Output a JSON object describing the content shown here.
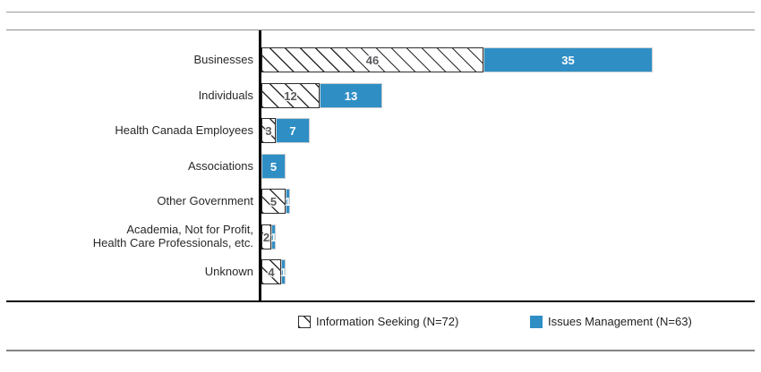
{
  "chart_data": {
    "type": "bar",
    "orientation": "horizontal",
    "stacked": true,
    "title": "",
    "xlabel": "",
    "ylabel": "",
    "grid": false,
    "legend_position": "bottom",
    "categories": [
      "Businesses",
      "Individuals",
      "Health Canada Employees",
      "Associations",
      "Other Government",
      "Academia, Not for Profit,\nHealth Care Professionals, etc.",
      "Unknown"
    ],
    "series": [
      {
        "name": "Information Seeking (N=72)",
        "style": "hatched",
        "fill_color": "#ffffff",
        "hatch_color": "#2b2b2b",
        "value_text_color": "#58595b",
        "values": [
          46,
          12,
          3,
          0,
          5,
          2,
          4
        ]
      },
      {
        "name": "Issues Management (N=63)",
        "style": "solid",
        "color": "#2f8fc5",
        "value_text_color": "#ffffff",
        "values": [
          35,
          13,
          7,
          5,
          1,
          1,
          1
        ]
      }
    ],
    "totals_note": {
      "information_seeking_total": 72,
      "issues_management_total": 63
    },
    "xlim": [
      0,
      102
    ]
  },
  "legend": {
    "items": [
      {
        "label": "Information Seeking (N=72)",
        "swatch": "hatched-square-icon"
      },
      {
        "label": "Issues Management (N=63)",
        "swatch": "blue-square-icon"
      }
    ]
  },
  "colors": {
    "bar_blue": "#2f8fc5",
    "hatch_line": "#2b2b2b",
    "axis_black": "#000000",
    "rule_gray": "#8d8d8d",
    "hatched_value_gray": "#58595b"
  }
}
